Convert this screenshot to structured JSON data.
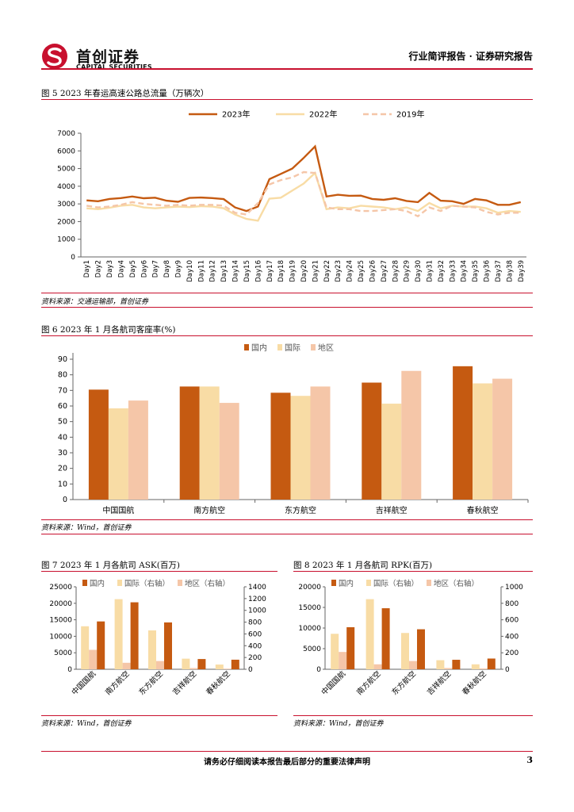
{
  "header": {
    "brand_cn": "首创证券",
    "brand_en": "CAPITAL SECURITIES",
    "report_type": "行业简评报告 · 证券研究报告"
  },
  "figures": {
    "fig5": {
      "title": "图 5 2023 年春运高速公路总流量（万辆次）",
      "source": "资料来源：交通运输部，首创证券"
    },
    "fig6": {
      "title": "图 6 2023 年 1 月各航司客座率(%)",
      "source": "资料来源：Wind，首创证券"
    },
    "fig7": {
      "title": "图 7 2023 年 1 月各航司 ASK(百万)",
      "source": "资料来源：Wind，首创证券"
    },
    "fig8": {
      "title": "图 8 2023 年 1 月各航司 RPK(百万)",
      "source": "资料来源：Wind，首创证券"
    }
  },
  "footer": {
    "disclaimer": "请务必仔细阅读本报告最后部分的重要法律声明",
    "page": "3"
  },
  "colors": {
    "accent": "#c8102e",
    "dark": "#c55a11",
    "light": "#f8dca5",
    "pale": "#f5c6a8"
  },
  "chart_data": [
    {
      "id": "fig5",
      "type": "line",
      "x": [
        "Day1",
        "Day2",
        "Day3",
        "Day4",
        "Day5",
        "Day6",
        "Day7",
        "Day8",
        "Day9",
        "Day10",
        "Day11",
        "Day12",
        "Day13",
        "Day14",
        "Day15",
        "Day16",
        "Day17",
        "Day18",
        "Day19",
        "Day20",
        "Day21",
        "Day22",
        "Day23",
        "Day24",
        "Day25",
        "Day26",
        "Day27",
        "Day28",
        "Day29",
        "Day30",
        "Day31",
        "Day32",
        "Day33",
        "Day34",
        "Day35",
        "Day36",
        "Day37",
        "Day38",
        "Day39"
      ],
      "series": [
        {
          "name": "2023年",
          "values": [
            3200,
            3150,
            3280,
            3330,
            3420,
            3320,
            3350,
            3180,
            3120,
            3340,
            3360,
            3330,
            3270,
            2800,
            2600,
            2850,
            4400,
            4700,
            5000,
            5600,
            6250,
            3420,
            3520,
            3460,
            3470,
            3280,
            3230,
            3320,
            3170,
            3100,
            3620,
            3180,
            3150,
            3000,
            3280,
            3200,
            2950,
            2950,
            3100
          ]
        },
        {
          "name": "2022年",
          "values": [
            2750,
            2700,
            2780,
            2900,
            2950,
            2800,
            2750,
            2800,
            2850,
            2820,
            2870,
            2850,
            2750,
            2400,
            2150,
            2050,
            3300,
            3350,
            3750,
            4150,
            4750,
            2700,
            2800,
            2750,
            2900,
            2850,
            2800,
            2700,
            2800,
            2600,
            3050,
            2750,
            2900,
            2850,
            2850,
            2750,
            2500,
            2600,
            2550
          ]
        },
        {
          "name": "2019年",
          "values": [
            2900,
            2800,
            2850,
            2950,
            3100,
            3000,
            2950,
            2900,
            2950,
            2900,
            2950,
            2950,
            2900,
            2500,
            2400,
            3050,
            4100,
            4350,
            4500,
            4800,
            4750,
            2800,
            2700,
            2700,
            2600,
            2600,
            2650,
            2700,
            2600,
            2300,
            2800,
            2600,
            2900,
            2850,
            2800,
            2550,
            2400,
            2500,
            2500
          ]
        }
      ],
      "ylim": [
        0,
        7000
      ],
      "yticks": [
        0,
        1000,
        2000,
        3000,
        4000,
        5000,
        6000,
        7000
      ],
      "legend": "top",
      "grid": false
    },
    {
      "id": "fig6",
      "type": "bar",
      "categories": [
        "中国国航",
        "南方航空",
        "东方航空",
        "吉祥航空",
        "春秋航空"
      ],
      "series": [
        {
          "name": "国内",
          "values": [
            70.5,
            72.5,
            68.5,
            75,
            85.5
          ]
        },
        {
          "name": "国际",
          "values": [
            58.5,
            72.5,
            66.5,
            61.5,
            74.5
          ]
        },
        {
          "name": "地区",
          "values": [
            63.5,
            62,
            72.5,
            82.5,
            77.5
          ]
        }
      ],
      "ylim": [
        0,
        90
      ],
      "yticks": [
        0,
        10,
        20,
        30,
        40,
        50,
        60,
        70,
        80,
        90
      ],
      "legend": "top",
      "grid": false
    },
    {
      "id": "fig7",
      "type": "bar",
      "categories": [
        "中国国航",
        "南方航空",
        "东方航空",
        "吉祥航空",
        "春秋航空"
      ],
      "series": [
        {
          "name": "国内",
          "axis": "left",
          "values": [
            14500,
            20300,
            14200,
            3100,
            2900
          ]
        },
        {
          "name": "国际（右轴）",
          "axis": "right",
          "values": [
            730,
            1190,
            660,
            180,
            80
          ]
        },
        {
          "name": "地区（右轴）",
          "axis": "right",
          "values": [
            330,
            110,
            140,
            20,
            10
          ]
        }
      ],
      "ylim": [
        0,
        25000
      ],
      "yticks": [
        0,
        5000,
        10000,
        15000,
        20000,
        25000
      ],
      "y2lim": [
        0,
        1400
      ],
      "y2ticks": [
        0,
        200,
        400,
        600,
        800,
        1000,
        1200,
        1400
      ],
      "legend": "top",
      "grid": false
    },
    {
      "id": "fig8",
      "type": "bar",
      "categories": [
        "中国国航",
        "南方航空",
        "东方航空",
        "吉祥航空",
        "春秋航空"
      ],
      "series": [
        {
          "name": "国内",
          "axis": "left",
          "values": [
            10200,
            14800,
            9700,
            2300,
            2600
          ]
        },
        {
          "name": "国际（右轴）",
          "axis": "right",
          "values": [
            430,
            850,
            440,
            110,
            60
          ]
        },
        {
          "name": "地区（右轴）",
          "axis": "right",
          "values": [
            210,
            60,
            100,
            15,
            10
          ]
        }
      ],
      "ylim": [
        0,
        20000
      ],
      "yticks": [
        0,
        5000,
        10000,
        15000,
        20000
      ],
      "y2lim": [
        0,
        1000
      ],
      "y2ticks": [
        0,
        200,
        400,
        600,
        800,
        1000
      ],
      "legend": "top",
      "grid": false
    }
  ]
}
